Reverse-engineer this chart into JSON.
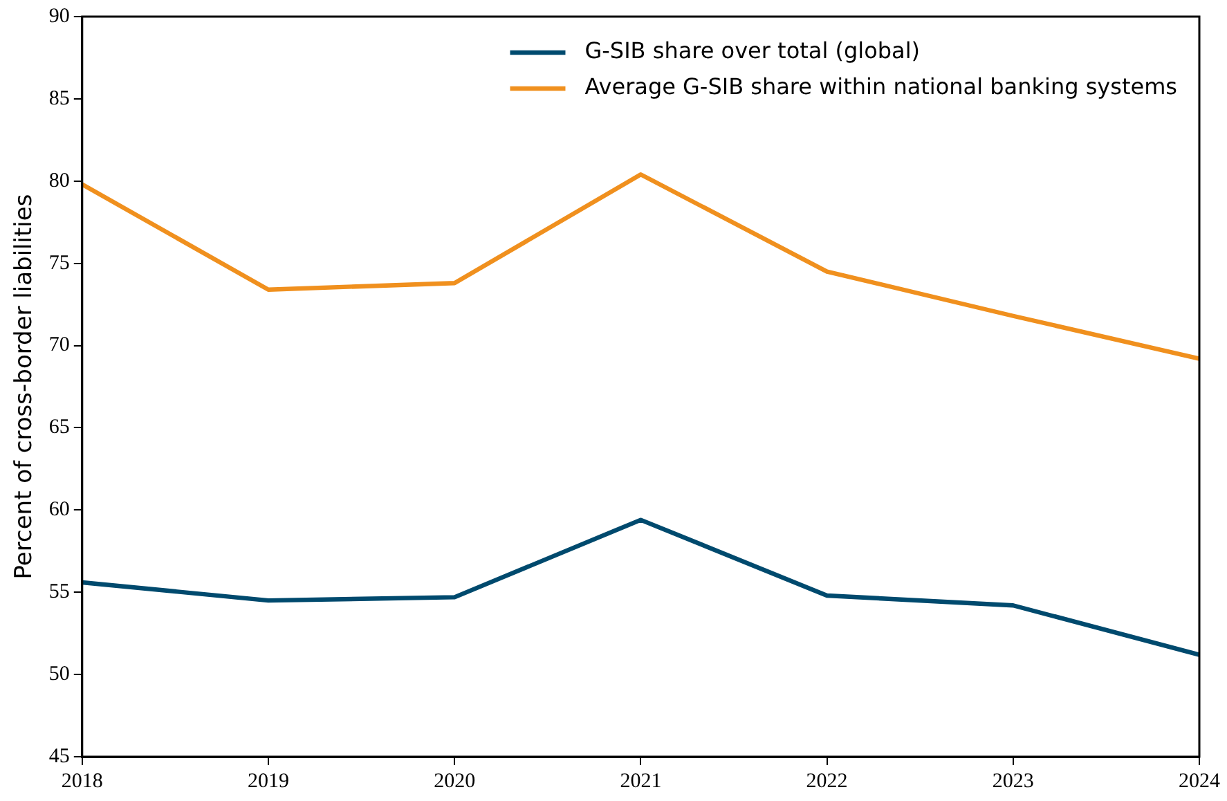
{
  "chart_data": {
    "type": "line",
    "ylabel": "Percent of cross-border liabilities",
    "x": [
      2018,
      2019,
      2020,
      2021,
      2022,
      2023,
      2024
    ],
    "xlim": [
      2018,
      2024
    ],
    "xticks": [
      2018,
      2019,
      2020,
      2021,
      2022,
      2023,
      2024
    ],
    "ylim": [
      45,
      90
    ],
    "yticks": [
      45,
      50,
      55,
      60,
      65,
      70,
      75,
      80,
      85,
      90
    ],
    "grid": false,
    "legend": "top right",
    "marker": "none",
    "line_style": "solid",
    "series": [
      {
        "name": "G-SIB share over total (global)",
        "color": "#004a6e",
        "values": [
          55.6,
          54.5,
          54.7,
          59.4,
          54.8,
          54.2,
          51.2
        ]
      },
      {
        "name": "Average G-SIB share within national banking systems",
        "color": "#f0901e",
        "values": [
          79.8,
          73.4,
          73.8,
          80.4,
          74.5,
          71.8,
          69.2
        ]
      }
    ]
  }
}
